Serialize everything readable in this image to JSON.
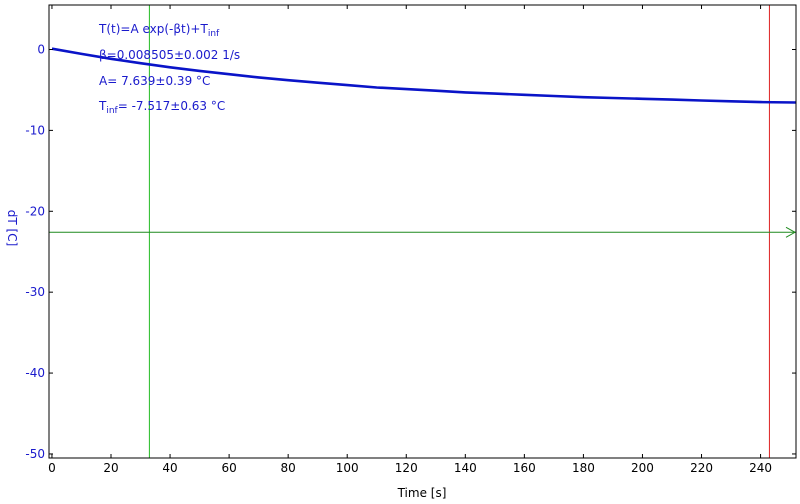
{
  "colors": {
    "curve": "#0a14c8",
    "y_axis_text": "#1a1acc",
    "x_axis_text": "#000000",
    "cursor_vertical_green": "#22bb22",
    "cursor_vertical_red": "#dd2222",
    "cursor_horizontal": "#1f8a1f",
    "frame": "#000000"
  },
  "chart_data": {
    "type": "line",
    "xlabel": "Time [s]",
    "ylabel": "dT [C]",
    "xlim": [
      -1,
      252
    ],
    "ylim": [
      -50.5,
      5.5
    ],
    "xticks": [
      0,
      20,
      40,
      60,
      80,
      100,
      120,
      140,
      160,
      180,
      200,
      220,
      240
    ],
    "xtick_labels": [
      "0",
      "20",
      "40",
      "60",
      "80",
      "100",
      "120",
      "140",
      "160",
      "180",
      "200",
      "220",
      "240"
    ],
    "yticks": [
      0,
      -10,
      -20,
      -30,
      -40,
      -50
    ],
    "ytick_labels": [
      "0",
      "-10",
      "-20",
      "-30",
      "-40",
      "-50"
    ],
    "series": [
      {
        "x": [
          0,
          10,
          20,
          30,
          40,
          50,
          60,
          70,
          80,
          90,
          100,
          110,
          120,
          130,
          140,
          150,
          160,
          170,
          180,
          190,
          200,
          210,
          220,
          230,
          240,
          252
        ],
        "y": [
          0.1,
          -0.55,
          -1.15,
          -1.7,
          -2.2,
          -2.65,
          -3.05,
          -3.45,
          -3.8,
          -4.1,
          -4.4,
          -4.7,
          -4.9,
          -5.1,
          -5.3,
          -5.45,
          -5.6,
          -5.75,
          -5.9,
          -6.0,
          -6.1,
          -6.2,
          -6.3,
          -6.4,
          -6.5,
          -6.55
        ]
      }
    ],
    "cursors": {
      "vertical_green_x": 33,
      "vertical_red_x": 243,
      "horizontal_y": -22.6
    },
    "annotations": {
      "line1_main": "T(t)=A exp(-βt)+T",
      "line1_sub": "inf",
      "line2": "β=0.008505±0.002 1/s",
      "line3": "A= 7.639±0.39 °C",
      "line4_main": "T",
      "line4_sub": "inf",
      "line4_rest": "= -7.517±0.63 °C"
    }
  }
}
